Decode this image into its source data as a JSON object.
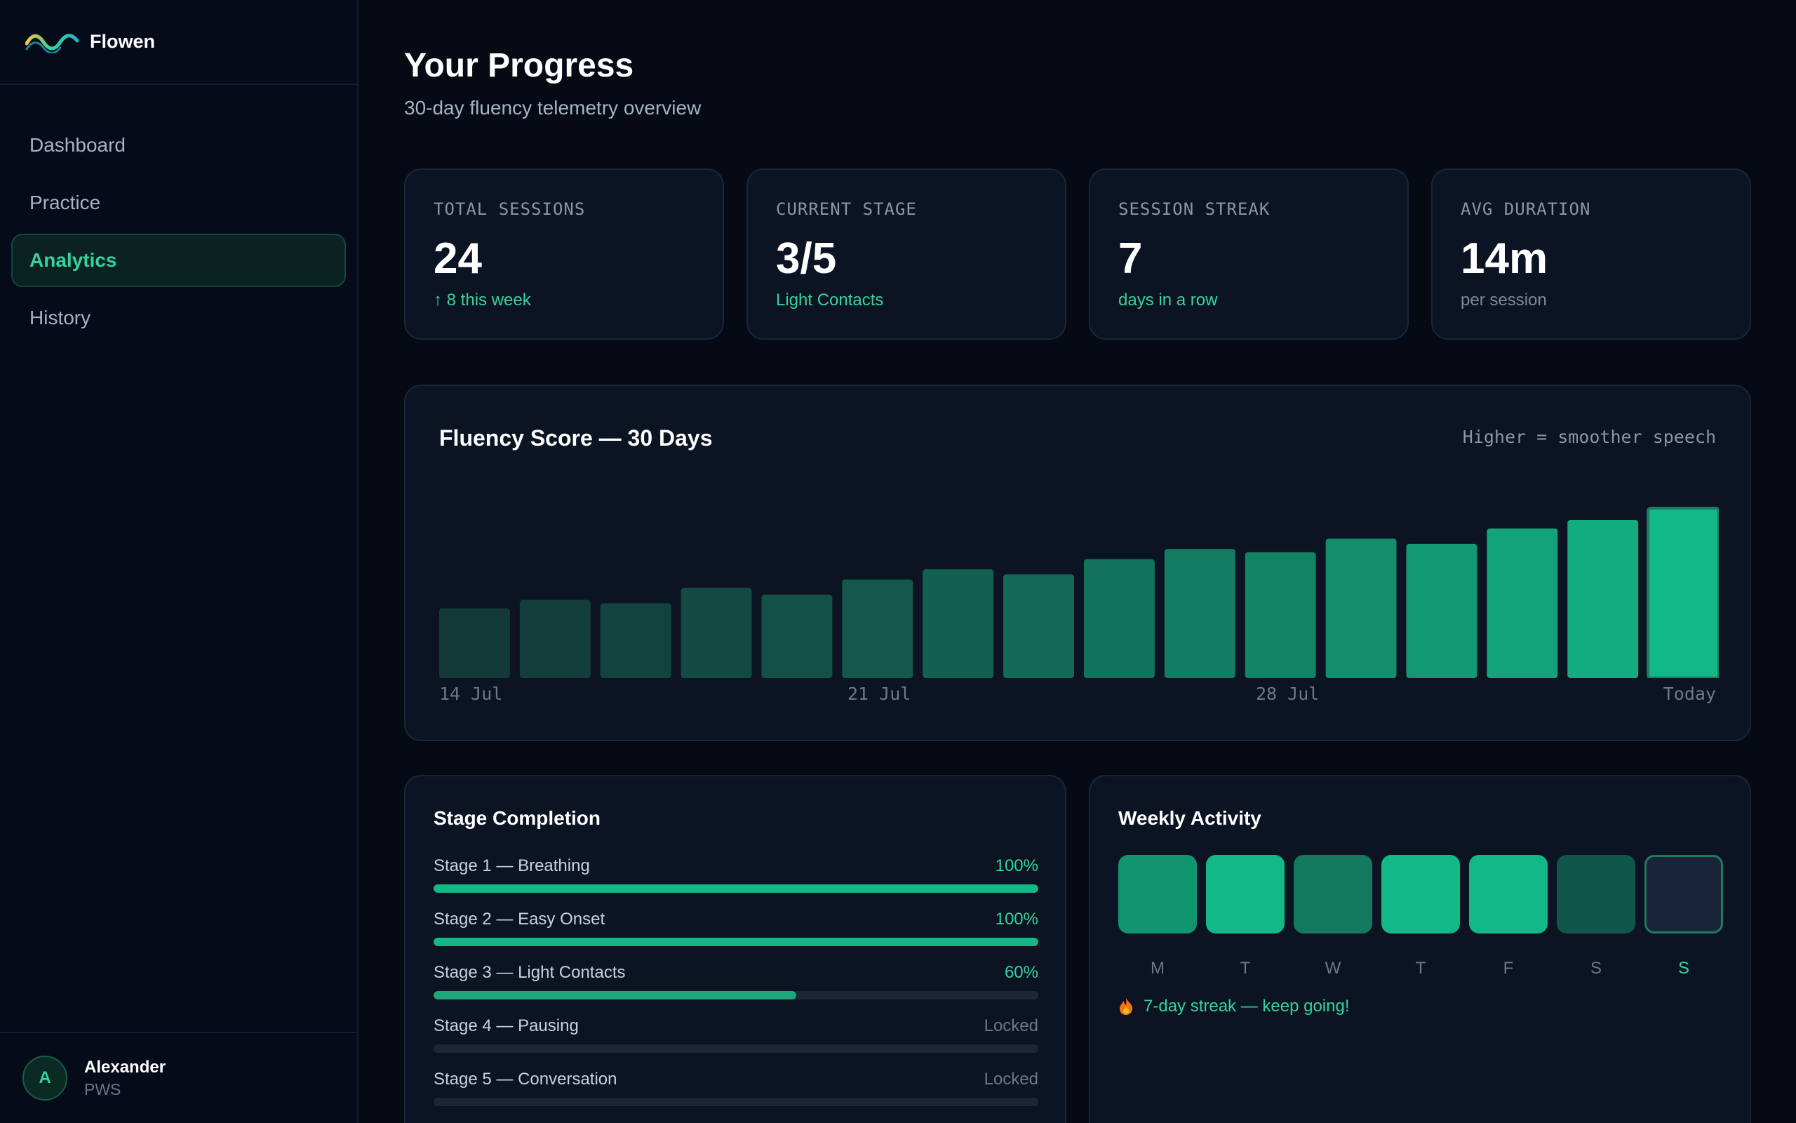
{
  "brand": {
    "name": "Flowen",
    "logo_icon": "wave-logo-icon"
  },
  "nav": {
    "items": [
      {
        "label": "Dashboard",
        "active": false
      },
      {
        "label": "Practice",
        "active": false
      },
      {
        "label": "Analytics",
        "active": true
      },
      {
        "label": "History",
        "active": false
      }
    ]
  },
  "user": {
    "initial": "A",
    "name": "Alexander",
    "role": "PWS"
  },
  "header": {
    "title": "Your Progress",
    "subtitle": "30-day fluency telemetry overview"
  },
  "stats": [
    {
      "label": "TOTAL SESSIONS",
      "value": "24",
      "sub": "↑ 8 this week"
    },
    {
      "label": "CURRENT STAGE",
      "value": "3/5",
      "sub": "Light Contacts"
    },
    {
      "label": "SESSION STREAK",
      "value": "7",
      "sub": "days in a row"
    },
    {
      "label": "AVG DURATION",
      "value": "14m",
      "sub": "per session"
    }
  ],
  "chart": {
    "title": "Fluency Score — 30 Days",
    "note": "Higher = smoother speech",
    "x_labels": [
      "14 Jul",
      "21 Jul",
      "28 Jul",
      "Today"
    ]
  },
  "chart_data": {
    "type": "bar",
    "title": "Fluency Score — 30 Days",
    "values": [
      41,
      46,
      44,
      53,
      49,
      58,
      64,
      61,
      70,
      76,
      74,
      82,
      79,
      88,
      93,
      100
    ],
    "ylim": [
      0,
      100
    ],
    "x_tick_labels": [
      "14 Jul",
      "21 Jul",
      "28 Jul",
      "Today"
    ],
    "highlight_last": true,
    "colors": {
      "low": "#133a39",
      "high": "#12b886"
    }
  },
  "stages": {
    "title": "Stage Completion",
    "items": [
      {
        "name": "Stage 1 — Breathing",
        "status": "100%",
        "progress": 1.0
      },
      {
        "name": "Stage 2 — Easy Onset",
        "status": "100%",
        "progress": 1.0
      },
      {
        "name": "Stage 3 — Light Contacts",
        "status": "60%",
        "progress": 0.6
      },
      {
        "name": "Stage 4 — Pausing",
        "status": "Locked",
        "progress": 0
      },
      {
        "name": "Stage 5 — Conversation",
        "status": "Locked",
        "progress": 0
      }
    ]
  },
  "weekly": {
    "title": "Weekly Activity",
    "days": [
      {
        "label": "M",
        "level": 0.8
      },
      {
        "label": "T",
        "level": 1.0
      },
      {
        "label": "W",
        "level": 0.6
      },
      {
        "label": "T",
        "level": 1.0
      },
      {
        "label": "F",
        "level": 1.0
      },
      {
        "label": "S",
        "level": 0.4
      },
      {
        "label": "S",
        "level": 0,
        "today": true
      }
    ],
    "streak_text": "7-day streak — keep going!",
    "streak_icon": "flame-icon"
  },
  "colors": {
    "accent": "#34d399",
    "bar_accent": "#12b886",
    "background": "#050a14",
    "card": "#0c1424"
  }
}
